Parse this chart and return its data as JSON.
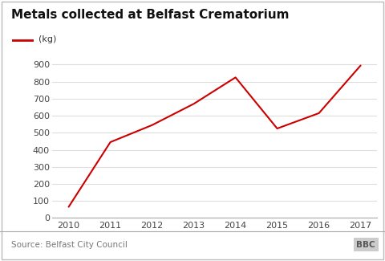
{
  "title": "Metals collected at Belfast Crematorium",
  "legend_label": "(kg)",
  "years": [
    2010,
    2011,
    2012,
    2013,
    2014,
    2015,
    2016,
    2017
  ],
  "values": [
    65,
    445,
    545,
    670,
    825,
    525,
    615,
    895
  ],
  "line_color": "#cc0000",
  "ylim": [
    0,
    950
  ],
  "yticks": [
    0,
    100,
    200,
    300,
    400,
    500,
    600,
    700,
    800,
    900
  ],
  "xlim": [
    2009.6,
    2017.4
  ],
  "source_text": "Source: Belfast City Council",
  "bbc_text": "BBC",
  "background_color": "#ffffff",
  "outer_border_color": "#bbbbbb",
  "grid_color": "#dddddd",
  "bottom_spine_color": "#aaaaaa",
  "title_fontsize": 11,
  "axis_fontsize": 8,
  "source_fontsize": 7.5,
  "legend_fontsize": 8
}
